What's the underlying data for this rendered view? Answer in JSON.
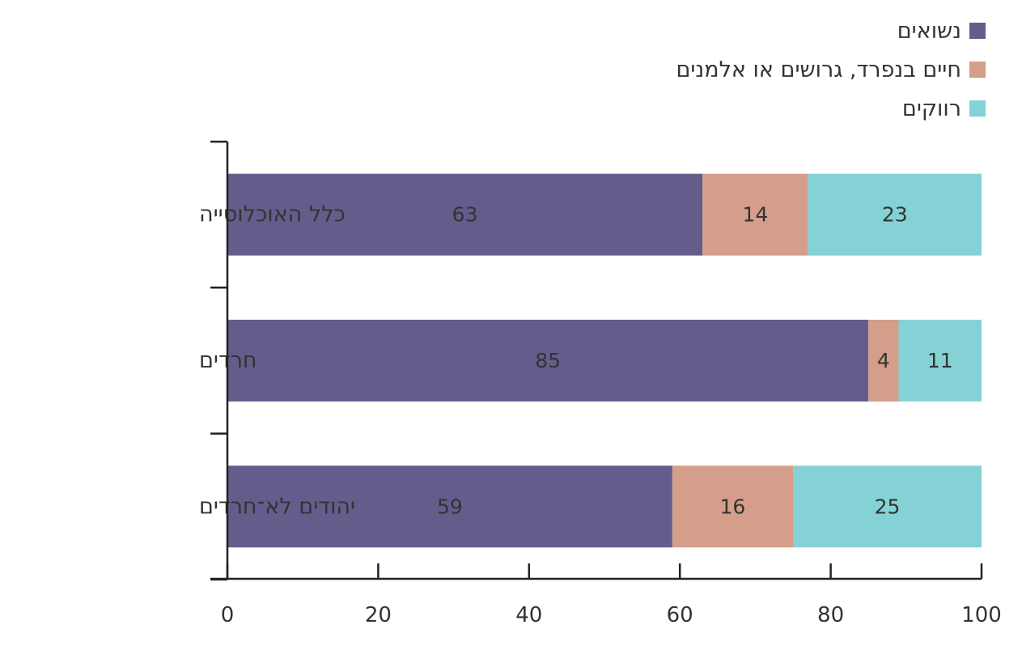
{
  "chart_data": {
    "type": "bar",
    "orientation": "horizontal",
    "stacked": true,
    "categories": [
      "כלל האוכלוסייה",
      "חרדים",
      "יהודים לא־חרדים"
    ],
    "series": [
      {
        "name": "נשואים",
        "color": "#645D8C",
        "values": [
          63,
          85,
          59
        ]
      },
      {
        "name": "חיים בנפרד, גרושים או אלמנים",
        "color": "#D49E8A",
        "values": [
          14,
          4,
          16
        ]
      },
      {
        "name": "רווקים",
        "color": "#85D2D6",
        "values": [
          23,
          11,
          25
        ]
      }
    ],
    "xticks": [
      "0",
      "20",
      "40",
      "60",
      "80",
      "100"
    ],
    "xlim": [
      0,
      100
    ],
    "title": "",
    "xlabel": "",
    "ylabel": "",
    "legend_position": "top-right",
    "grid": false
  }
}
